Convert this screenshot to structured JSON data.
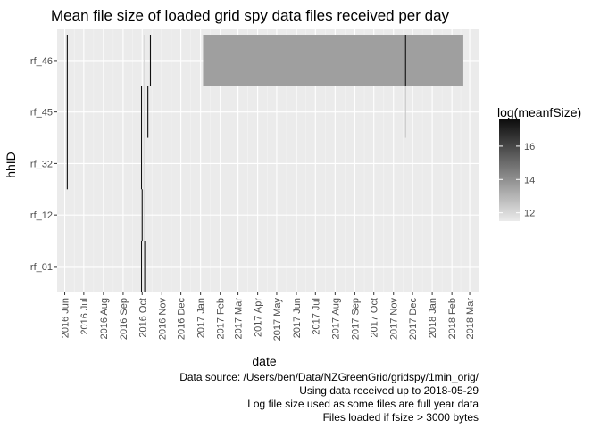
{
  "chart_data": {
    "type": "heatmap",
    "title": "Mean file size of loaded grid spy data files received per day",
    "xlabel": "date",
    "ylabel": "hhID",
    "x_range": [
      "2016-05-20",
      "2018-03-15"
    ],
    "x_tick_labels": [
      {
        "date": "2016-06-01",
        "label": "2016 Jun"
      },
      {
        "date": "2016-07-01",
        "label": "2016 Jul"
      },
      {
        "date": "2016-08-01",
        "label": "2016 Aug"
      },
      {
        "date": "2016-09-01",
        "label": "2016 Sep"
      },
      {
        "date": "2016-10-01",
        "label": "2016 Oct"
      },
      {
        "date": "2016-11-01",
        "label": "2016 Nov"
      },
      {
        "date": "2016-12-01",
        "label": "2016 Dec"
      },
      {
        "date": "2017-01-01",
        "label": "2017 Jan"
      },
      {
        "date": "2017-02-01",
        "label": "2017 Feb"
      },
      {
        "date": "2017-03-01",
        "label": "2017 Mar"
      },
      {
        "date": "2017-04-01",
        "label": "2017 Apr"
      },
      {
        "date": "2017-05-01",
        "label": "2017 May"
      },
      {
        "date": "2017-06-01",
        "label": "2017 Jun"
      },
      {
        "date": "2017-07-01",
        "label": "2017 Jul"
      },
      {
        "date": "2017-08-01",
        "label": "2017 Aug"
      },
      {
        "date": "2017-09-01",
        "label": "2017 Sep"
      },
      {
        "date": "2017-10-01",
        "label": "2017 Oct"
      },
      {
        "date": "2017-11-01",
        "label": "2017 Nov"
      },
      {
        "date": "2017-12-01",
        "label": "2017 Dec"
      },
      {
        "date": "2018-01-01",
        "label": "2018 Jan"
      },
      {
        "date": "2018-02-01",
        "label": "2018 Feb"
      },
      {
        "date": "2018-03-01",
        "label": "2018 Mar"
      }
    ],
    "y_categories": [
      "rf_01",
      "rf_12",
      "rf_32",
      "rf_45",
      "rf_46"
    ],
    "cells": [
      {
        "date": "2016-06-05",
        "hhID": "rf_46",
        "value": 17.5
      },
      {
        "date": "2016-06-05",
        "hhID": "rf_45",
        "value": 17.5
      },
      {
        "date": "2016-06-05",
        "hhID": "rf_32",
        "value": 17.5
      },
      {
        "date": "2016-09-30",
        "hhID": "rf_45",
        "value": 17.5
      },
      {
        "date": "2016-09-30",
        "hhID": "rf_32",
        "value": 17.5
      },
      {
        "date": "2016-10-01",
        "hhID": "rf_12",
        "value": 17.5
      },
      {
        "date": "2016-09-30",
        "hhID": "rf_01",
        "value": 17.5
      },
      {
        "date": "2016-10-04",
        "hhID": "rf_46",
        "value": 12.0
      },
      {
        "date": "2016-10-04",
        "hhID": "rf_45",
        "value": 12.0
      },
      {
        "date": "2016-10-04",
        "hhID": "rf_32",
        "value": 12.0
      },
      {
        "date": "2016-10-04",
        "hhID": "rf_12",
        "value": 12.0
      },
      {
        "date": "2016-10-05",
        "hhID": "rf_01",
        "value": 17.5
      },
      {
        "date": "2016-10-10",
        "hhID": "rf_45",
        "value": 17.5
      },
      {
        "date": "2016-10-14",
        "hhID": "rf_46",
        "value": 17.5
      },
      {
        "date": "2017-11-20",
        "hhID": "rf_46",
        "value": 17.5
      },
      {
        "date": "2017-11-20",
        "hhID": "rf_45",
        "value": 12.5
      }
    ],
    "bands": [
      {
        "start": "2017-01-05",
        "end": "2018-02-19",
        "hhID": "rf_46",
        "value": 13.6
      }
    ],
    "legend": {
      "title": "log(meanfSize)",
      "min": 11.5,
      "max": 17.6,
      "ticks": [
        12,
        14,
        16
      ],
      "color_low": "#ebebeb",
      "color_high": "#0d0d0d"
    },
    "panel_background": "#ebebeb",
    "grid": true,
    "caption": [
      "Data source: /Users/ben/Data/NZGreenGrid/gridspy/1min_orig/",
      "Using data received up to 2018-05-29",
      "Log file size used as some files are full year data",
      "Files loaded if fsize > 3000 bytes"
    ]
  }
}
